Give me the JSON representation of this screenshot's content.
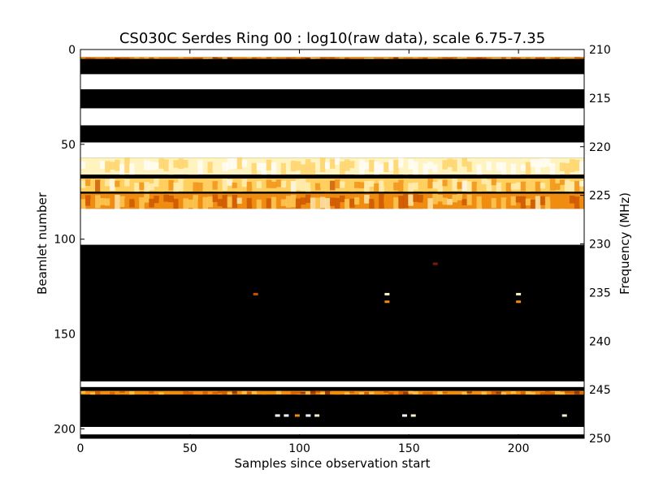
{
  "chart_data": {
    "type": "heatmap",
    "title": "CS030C Serdes Ring 00 : log10(raw data), scale 6.75-7.35",
    "xlabel": "Samples since observation start",
    "ylabel": "Beamlet number",
    "y2label": "Frequency (MHz)",
    "xlim": [
      0,
      230
    ],
    "ylim": [
      205,
      0
    ],
    "y2lim": [
      250,
      210
    ],
    "xticks": [
      0,
      50,
      100,
      150,
      200
    ],
    "yticks": [
      0,
      50,
      100,
      150,
      200
    ],
    "y2ticks": [
      210,
      215,
      220,
      225,
      230,
      235,
      240,
      245,
      250
    ],
    "color_scale": [
      6.75,
      7.35
    ],
    "colormap": "afmhot",
    "colormap_colors": [
      "#000000",
      "#2a0500",
      "#7a1e00",
      "#c85000",
      "#f08c10",
      "#ffd060",
      "#fff3c0",
      "#ffffff"
    ],
    "bands": [
      {
        "from": 0,
        "to": 4,
        "level": 1.0
      },
      {
        "from": 4,
        "to": 5,
        "level": 0.55
      },
      {
        "from": 5,
        "to": 13,
        "level": 0.0
      },
      {
        "from": 13,
        "to": 21,
        "level": 1.0
      },
      {
        "from": 21,
        "to": 31,
        "level": 0.0
      },
      {
        "from": 31,
        "to": 40,
        "level": 1.0
      },
      {
        "from": 40,
        "to": 49,
        "level": 0.05
      },
      {
        "from": 49,
        "to": 57,
        "level": 1.0
      },
      {
        "from": 57,
        "to": 66,
        "level": 0.88
      },
      {
        "from": 66,
        "to": 68,
        "level": 0.0
      },
      {
        "from": 68,
        "to": 75,
        "level": 0.72
      },
      {
        "from": 75,
        "to": 76,
        "level": 0.0
      },
      {
        "from": 76,
        "to": 84,
        "level": 0.62
      },
      {
        "from": 84,
        "to": 103,
        "level": 1.0
      },
      {
        "from": 103,
        "to": 175,
        "level": 0.0
      },
      {
        "from": 175,
        "to": 178,
        "level": 1.0
      },
      {
        "from": 178,
        "to": 180,
        "level": 0.0
      },
      {
        "from": 180,
        "to": 182,
        "level": 0.55
      },
      {
        "from": 182,
        "to": 199,
        "level": 0.0
      },
      {
        "from": 199,
        "to": 203,
        "level": 1.0
      },
      {
        "from": 203,
        "to": 205,
        "level": 0.0
      }
    ],
    "hotspots": [
      {
        "x": 140,
        "y": 129,
        "level": 0.9
      },
      {
        "x": 140,
        "y": 133,
        "level": 0.6
      },
      {
        "x": 200,
        "y": 129,
        "level": 0.9
      },
      {
        "x": 200,
        "y": 133,
        "level": 0.6
      },
      {
        "x": 80,
        "y": 129,
        "level": 0.4
      },
      {
        "x": 90,
        "y": 193,
        "level": 0.95
      },
      {
        "x": 94,
        "y": 193,
        "level": 0.95
      },
      {
        "x": 104,
        "y": 193,
        "level": 0.95
      },
      {
        "x": 108,
        "y": 193,
        "level": 0.9
      },
      {
        "x": 99,
        "y": 193,
        "level": 0.6
      },
      {
        "x": 148,
        "y": 193,
        "level": 0.95
      },
      {
        "x": 152,
        "y": 193,
        "level": 0.9
      },
      {
        "x": 221,
        "y": 193,
        "level": 0.8
      },
      {
        "x": 162,
        "y": 113,
        "level": 0.25
      }
    ]
  }
}
